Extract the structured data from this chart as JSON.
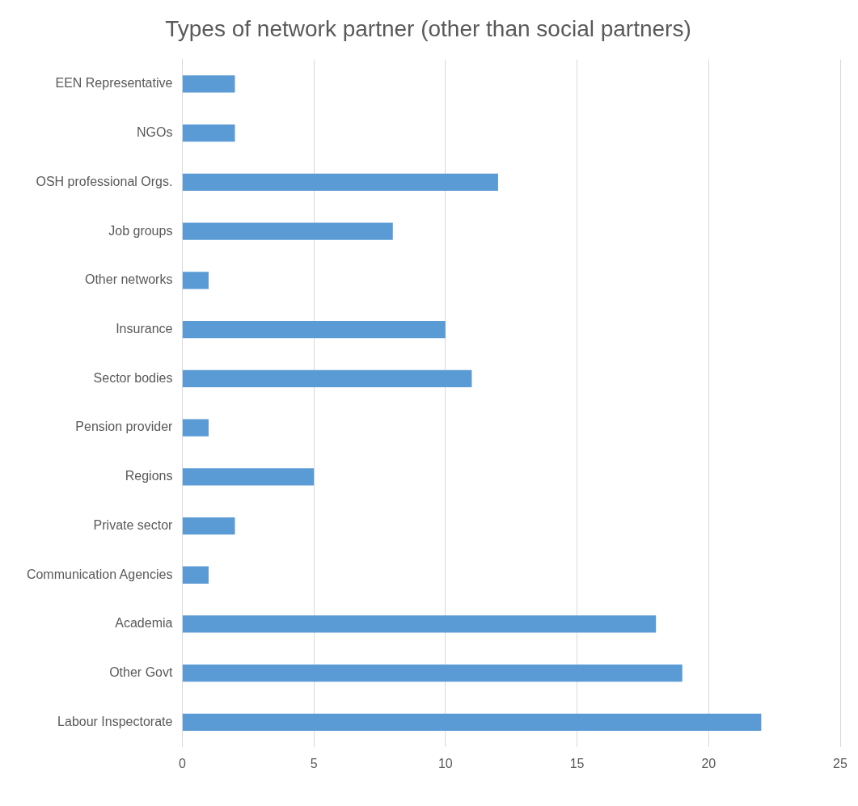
{
  "chart_data": {
    "type": "bar",
    "orientation": "horizontal",
    "title": "Types of network partner (other than social partners)",
    "categories": [
      "EEN Representative",
      "NGOs",
      "OSH professional Orgs.",
      "Job groups",
      "Other networks",
      "Insurance",
      "Sector bodies",
      "Pension provider",
      "Regions",
      "Private sector",
      "Communication Agencies",
      "Academia",
      "Other Govt",
      "Labour Inspectorate"
    ],
    "values": [
      2,
      2,
      12,
      8,
      1,
      10,
      11,
      1,
      5,
      2,
      1,
      18,
      19,
      22
    ],
    "color": "#5b9bd5",
    "xlim": [
      0,
      25
    ],
    "xticks": [
      0,
      5,
      10,
      15,
      20,
      25
    ],
    "grid": "x",
    "legend": false
  }
}
